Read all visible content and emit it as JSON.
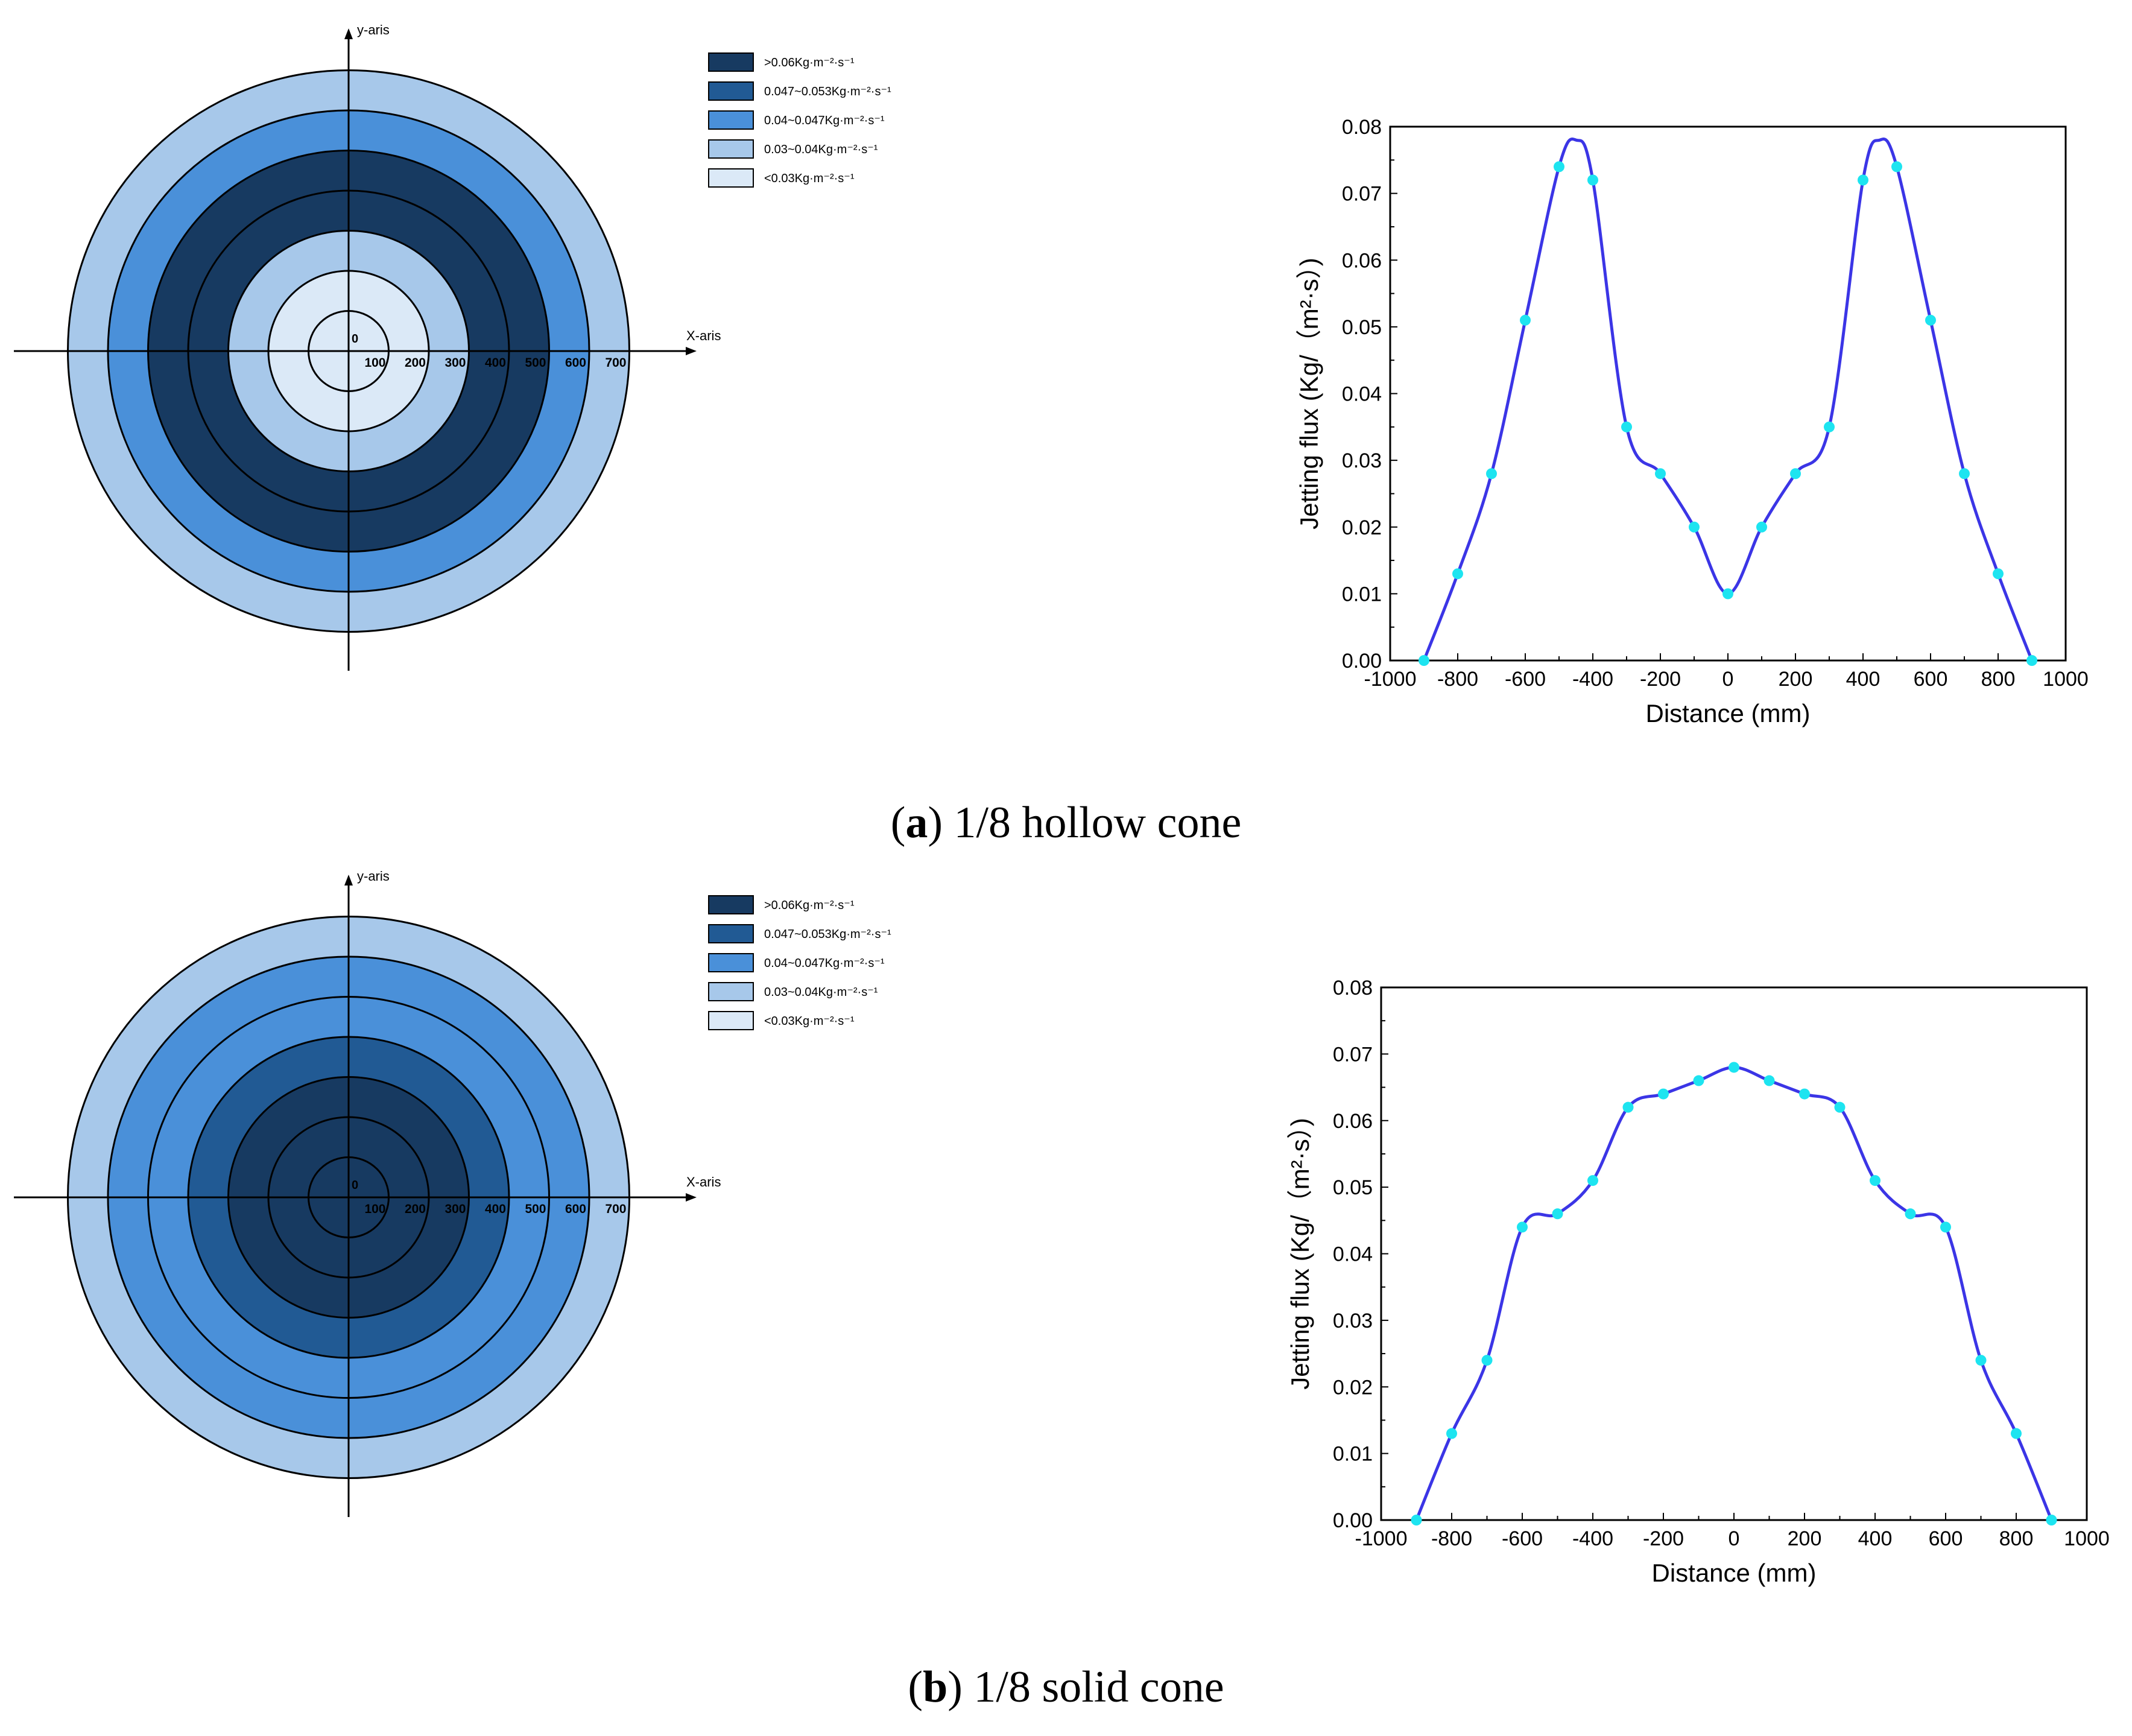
{
  "colors": {
    "band_gt006": "#173a61",
    "band_047_053": "#215a94",
    "band_04_047": "#4a90d9",
    "band_03_04": "#a7c8ea",
    "band_lt003": "#dbe9f7",
    "curve": "#3b35e6",
    "marker": "#1de4f0"
  },
  "legend": [
    {
      "key": "gt006",
      "label": ">0.06Kg·m⁻²·s⁻¹"
    },
    {
      "key": "047_053",
      "label": "0.047~0.053Kg·m⁻²·s⁻¹"
    },
    {
      "key": "04_047",
      "label": "0.04~0.047Kg·m⁻²·s⁻¹"
    },
    {
      "key": "03_04",
      "label": "0.03~0.04Kg·m⁻²·s⁻¹"
    },
    {
      "key": "lt003",
      "label": "<0.03Kg·m⁻²·s⁻¹"
    }
  ],
  "panels": [
    {
      "id": "a",
      "caption_letter": "a",
      "caption_text": "1/8 hollow cone",
      "polar_map": {
        "x_axis_label": "X-aris",
        "y_axis_label": "y-aris",
        "origin_label": "0",
        "ring_labels": [
          "100",
          "200",
          "300",
          "400",
          "500",
          "600",
          "700"
        ],
        "rings": [
          {
            "r": 700,
            "band": "03_04"
          },
          {
            "r": 600,
            "band": "04_047"
          },
          {
            "r": 500,
            "band": "gt006"
          },
          {
            "r": 400,
            "band": "gt006"
          },
          {
            "r": 300,
            "band": "03_04"
          },
          {
            "r": 200,
            "band": "lt003"
          },
          {
            "r": 100,
            "band": "lt003"
          }
        ]
      },
      "chart_data": {
        "type": "line",
        "title": "",
        "xlabel": "Distance (mm)",
        "ylabel": "Jetting flux (Kg/（m²·s）)",
        "xlim": [
          -1000,
          1000
        ],
        "ylim": [
          0,
          0.08
        ],
        "xticks": [
          -1000,
          -800,
          -600,
          -400,
          -200,
          0,
          200,
          400,
          600,
          800,
          1000
        ],
        "yticks": [
          0,
          0.01,
          0.02,
          0.03,
          0.04,
          0.05,
          0.06,
          0.07,
          0.08
        ],
        "xtick_labels": [
          "-1000",
          "-800",
          "-600",
          "-400",
          "-200",
          "0",
          "200",
          "400",
          "600",
          "800",
          "1000"
        ],
        "ytick_labels": [
          "0.00",
          "0.01",
          "0.02",
          "0.03",
          "0.04",
          "0.05",
          "0.06",
          "0.07",
          "0.08"
        ],
        "series": [
          {
            "name": "jetting flux",
            "x": [
              -900,
              -800,
              -700,
              -600,
              -500,
              -450,
              -400,
              -300,
              -200,
              -100,
              0,
              100,
              200,
              300,
              400,
              450,
              500,
              600,
              700,
              800,
              900
            ],
            "y": [
              0.0,
              0.013,
              0.028,
              0.051,
              0.074,
              0.078,
              0.072,
              0.035,
              0.028,
              0.02,
              0.01,
              0.02,
              0.028,
              0.035,
              0.072,
              0.078,
              0.074,
              0.051,
              0.028,
              0.013,
              0.0
            ],
            "markers": [
              true,
              true,
              true,
              true,
              true,
              false,
              true,
              true,
              true,
              true,
              true,
              true,
              true,
              true,
              true,
              false,
              true,
              true,
              true,
              true,
              true
            ]
          }
        ]
      }
    },
    {
      "id": "b",
      "caption_letter": "b",
      "caption_text": "1/8 solid cone",
      "polar_map": {
        "x_axis_label": "X-aris",
        "y_axis_label": "y-aris",
        "origin_label": "0",
        "ring_labels": [
          "100",
          "200",
          "300",
          "400",
          "500",
          "600",
          "700"
        ],
        "rings": [
          {
            "r": 700,
            "band": "03_04"
          },
          {
            "r": 600,
            "band": "04_047"
          },
          {
            "r": 500,
            "band": "04_047"
          },
          {
            "r": 400,
            "band": "047_053"
          },
          {
            "r": 300,
            "band": "gt006"
          },
          {
            "r": 200,
            "band": "gt006"
          },
          {
            "r": 100,
            "band": "gt006"
          }
        ]
      },
      "chart_data": {
        "type": "line",
        "title": "",
        "xlabel": "Distance (mm)",
        "ylabel": "Jetting flux (Kg/（m²·s）)",
        "xlim": [
          -1000,
          1000
        ],
        "ylim": [
          0,
          0.08
        ],
        "xticks": [
          -1000,
          -800,
          -600,
          -400,
          -200,
          0,
          200,
          400,
          600,
          800,
          1000
        ],
        "yticks": [
          0,
          0.01,
          0.02,
          0.03,
          0.04,
          0.05,
          0.06,
          0.07,
          0.08
        ],
        "xtick_labels": [
          "-1000",
          "-800",
          "-600",
          "-400",
          "-200",
          "0",
          "200",
          "400",
          "600",
          "800",
          "1000"
        ],
        "ytick_labels": [
          "0.00",
          "0.01",
          "0.02",
          "0.03",
          "0.04",
          "0.05",
          "0.06",
          "0.07",
          "0.08"
        ],
        "series": [
          {
            "name": "jetting flux",
            "x": [
              -900,
              -800,
              -700,
              -600,
              -500,
              -400,
              -300,
              -200,
              -100,
              0,
              100,
              200,
              300,
              400,
              500,
              600,
              700,
              800,
              900
            ],
            "y": [
              0.0,
              0.013,
              0.024,
              0.044,
              0.046,
              0.051,
              0.062,
              0.064,
              0.066,
              0.068,
              0.066,
              0.064,
              0.062,
              0.051,
              0.046,
              0.044,
              0.024,
              0.013,
              0.0
            ],
            "markers": [
              true,
              true,
              true,
              true,
              true,
              true,
              true,
              true,
              true,
              true,
              true,
              true,
              true,
              true,
              true,
              true,
              true,
              true,
              true
            ]
          }
        ]
      }
    }
  ]
}
